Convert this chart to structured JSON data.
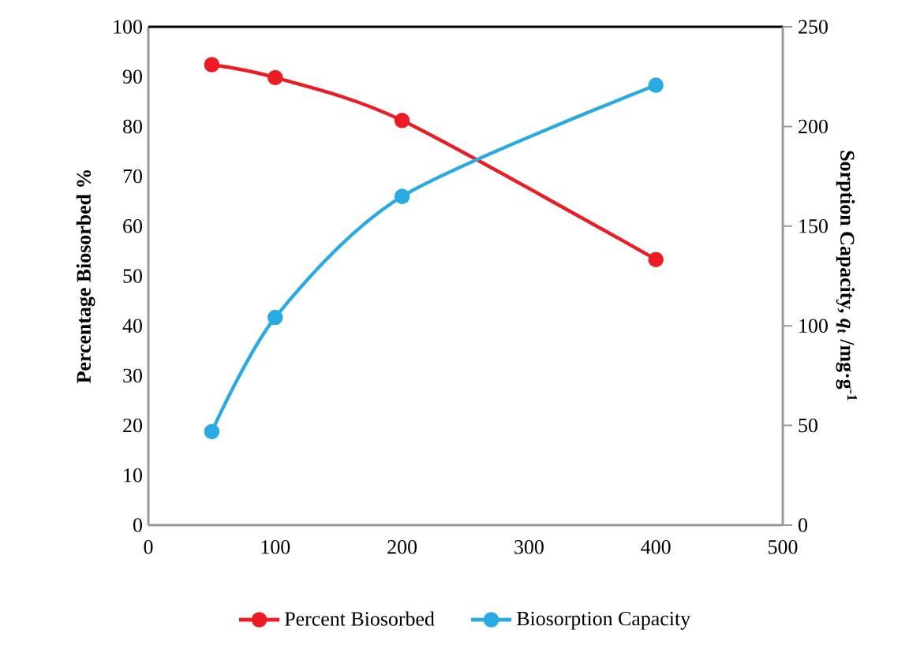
{
  "chart_data": {
    "type": "line",
    "ylabel": "Percentage Biosorbed %",
    "y2label": "Sorption Capacity, *q*$_{t}$ /mg·g$^{-1}$",
    "x": [
      50,
      100,
      200,
      400
    ],
    "xlim": [
      0,
      500
    ],
    "xticks": [
      0,
      100,
      200,
      300,
      400,
      500
    ],
    "ylim": [
      0,
      100
    ],
    "yticks": [
      0,
      10,
      20,
      30,
      40,
      50,
      60,
      70,
      80,
      90,
      100
    ],
    "y2lim": [
      0,
      250
    ],
    "y2ticks": [
      0,
      50,
      100,
      150,
      200,
      250
    ],
    "legend": "bottom",
    "marker": "circle",
    "line_style": "solid",
    "series": [
      {
        "name": "Percent Biosorbed",
        "color": "#ed1c24",
        "values": [
          92.4,
          89.8,
          81.2,
          53.3
        ]
      },
      {
        "name": "Biosorption Capacity",
        "color": "#29abe2",
        "axis": "y2",
        "values": [
          46.9,
          104.2,
          164.9,
          220.7
        ]
      }
    ]
  }
}
